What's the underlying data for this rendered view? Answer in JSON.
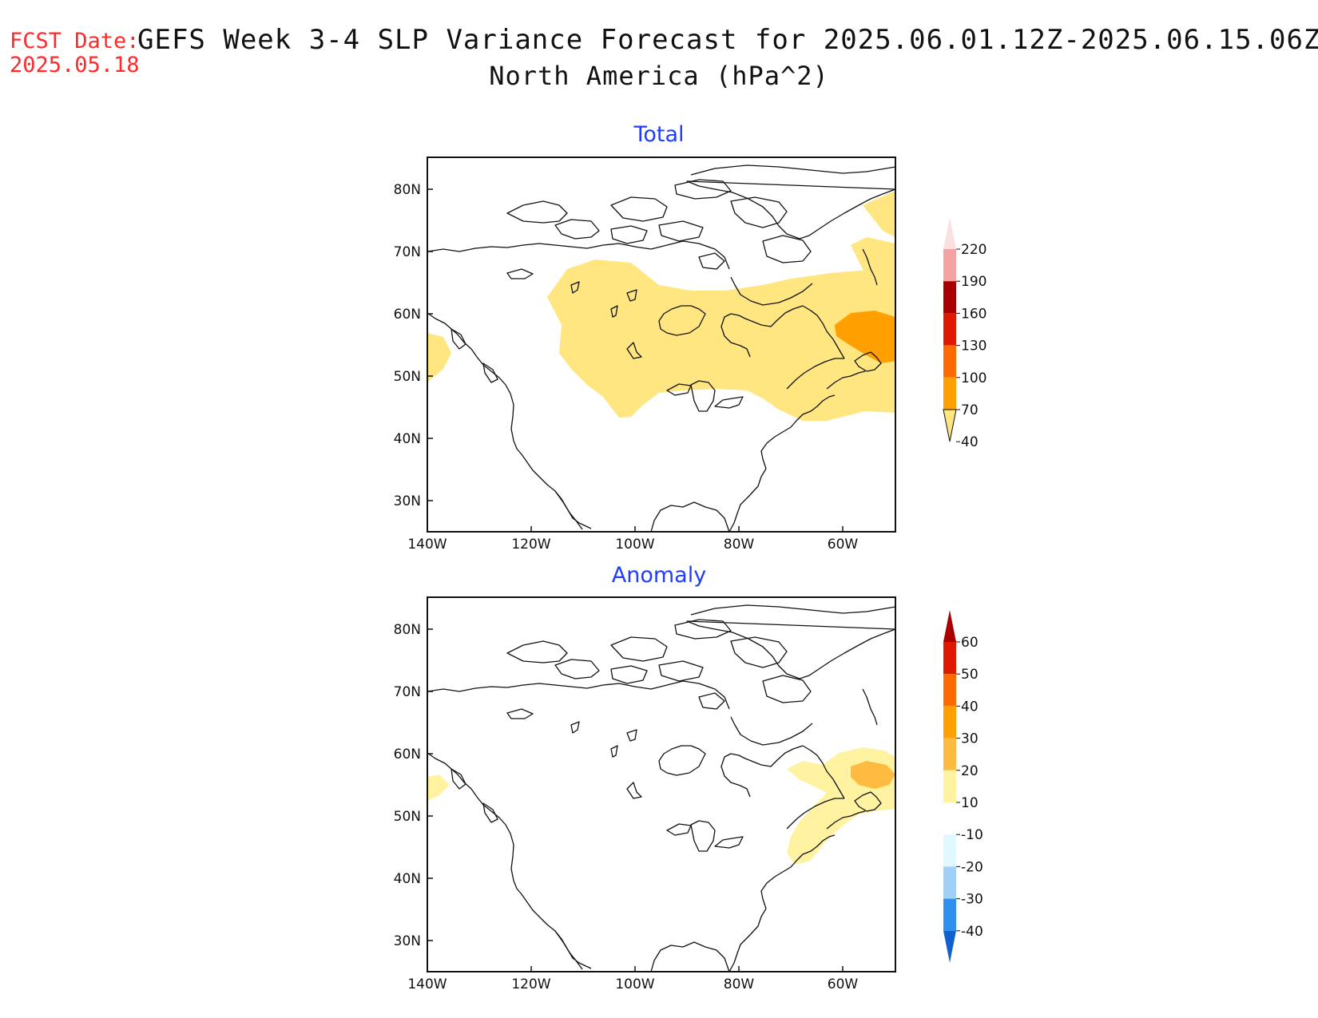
{
  "header": {
    "fcst_label": "FCST Date:",
    "fcst_date": "2025.05.18",
    "title": "GEFS Week 3-4 SLP Variance Forecast for 2025.06.01.12Z-2025.06.15.06Z",
    "subtitle": "North America (hPa^2)"
  },
  "map": {
    "lat_ticks": [
      "80N",
      "70N",
      "60N",
      "50N",
      "40N",
      "30N"
    ],
    "lon_ticks": [
      "140W",
      "120W",
      "100W",
      "80W",
      "60W"
    ]
  },
  "panels": [
    {
      "title": "Total",
      "colorbar": {
        "labels": [
          "220",
          "190",
          "160",
          "130",
          "100",
          "70",
          "40"
        ],
        "colors": [
          "#fbe0e0",
          "#f4a3a3",
          "#a80000",
          "#e01800",
          "#ff6a00",
          "#ffa000",
          "#ffe680"
        ]
      }
    },
    {
      "title": "Anomaly",
      "colorbar": {
        "labels": [
          "60",
          "50",
          "40",
          "30",
          "20",
          "10",
          "-10",
          "-20",
          "-30",
          "-40"
        ],
        "colors": [
          "#a80000",
          "#e01800",
          "#ff6a00",
          "#ffa000",
          "#ffbb40",
          "#fff2a0",
          "#ffffff",
          "#e0f8ff",
          "#a0d0f8",
          "#3090f0",
          "#1060d0"
        ]
      }
    }
  ]
}
